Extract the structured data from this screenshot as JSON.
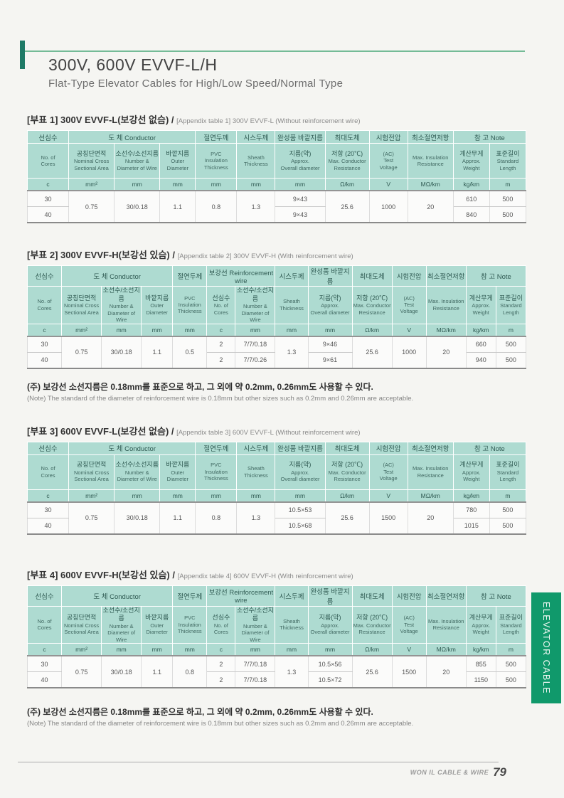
{
  "page": {
    "title": "300V, 600V EVVF-L/H",
    "subtitle": "Flat-Type Elevator Cables for High/Low Speed/Normal Type",
    "side_tab_label": "ELEVATOR CABLE",
    "footer_brand": "WON IL CABLE & WIRE",
    "page_number": "79"
  },
  "colors": {
    "table_header_bg": "#aedbd1",
    "tab_green": "#10996b",
    "accent_bar_green": "#1e7a66",
    "accent_line_green": "#74bb97"
  },
  "note": {
    "kr": "(주) 보강선 소선지름은 0.18mm를 표준으로 하고, 그 외에 약 0.2mm, 0.26mm도 사용할 수 있다.",
    "en": "(Note) The standard of the diameter of reinforcement wire is 0.18mm but other sizes such as 0.2mm and 0.26mm are acceptable."
  },
  "tables": [
    {
      "caption_kr": "[부표 1] 300V EVVF-L(보강선 없슴) / ",
      "caption_en": "[Appendix table 1] 300V EVVF-L (Without reinforcement wire)",
      "type": "L",
      "header_groups": [
        {
          "label": "선심수",
          "span": 1
        },
        {
          "label": "도 체  Conductor",
          "span": 3
        },
        {
          "label": "절연두께",
          "span": 1
        },
        {
          "label": "시스두께",
          "span": 1
        },
        {
          "label": "완성품 바깥지름",
          "span": 1
        },
        {
          "label": "최대도체",
          "span": 1
        },
        {
          "label": "시험전압",
          "span": 1
        },
        {
          "label": "최소절연저항",
          "span": 1
        },
        {
          "label": "참 고  Note",
          "span": 2
        }
      ],
      "header_cols": [
        {
          "en": "No. of\nCores"
        },
        {
          "kr": "공칭단면적",
          "en": "Nominal Cross\nSectional Area"
        },
        {
          "kr": "소선수/소선지름",
          "en": "Number &\nDiameter of Wire"
        },
        {
          "kr": "바깥지름",
          "en": "Outer\nDiameter"
        },
        {
          "en": "PVC\nInsulation\nThickness"
        },
        {
          "en": "Sheath\nThickness"
        },
        {
          "kr": "지름(약)",
          "en": "Approx.\nOverall diameter"
        },
        {
          "kr": "저항 (20℃)",
          "en": "Max. Conductor\nResistance"
        },
        {
          "en": "(AC)\nTest\nVoltage"
        },
        {
          "en": "Max. Insulation\nResistance"
        },
        {
          "kr": "계산무게",
          "en": "Approx.\nWeight"
        },
        {
          "kr": "표준길이",
          "en": "Standard\nLength"
        }
      ],
      "units": [
        "c",
        "mm²",
        "mm",
        "mm",
        "mm",
        "mm",
        "mm",
        "Ω/km",
        "V",
        "MΩ/km",
        "kg/km",
        "m"
      ],
      "rows": [
        [
          {
            "t": "30"
          },
          {
            "t": "0.75",
            "rs": 2
          },
          {
            "t": "30/0.18",
            "rs": 2
          },
          {
            "t": "1.1",
            "rs": 2
          },
          {
            "t": "0.8",
            "rs": 2
          },
          {
            "t": "1.3",
            "rs": 2
          },
          {
            "t": "9×43"
          },
          {
            "t": "25.6",
            "rs": 2
          },
          {
            "t": "1000",
            "rs": 2
          },
          {
            "t": "20",
            "rs": 2
          },
          {
            "t": "610"
          },
          {
            "t": "500"
          }
        ],
        [
          {
            "t": "40"
          },
          {
            "t": "9×43"
          },
          {
            "t": "840"
          },
          {
            "t": "500"
          }
        ]
      ]
    },
    {
      "caption_kr": "[부표 2] 300V EVVF-H(보강선 있슴) / ",
      "caption_en": "[Appendix table 2] 300V EVVF-H (With reinforcement wire)",
      "type": "H",
      "header_groups": [
        {
          "label": "선심수",
          "span": 1
        },
        {
          "label": "도 체  Conductor",
          "span": 3
        },
        {
          "label": "절연두께",
          "span": 1
        },
        {
          "label": "보강선 Reinforcement wire",
          "span": 2
        },
        {
          "label": "시스두께",
          "span": 1
        },
        {
          "label": "완성품 바깥지름",
          "span": 1
        },
        {
          "label": "최대도체",
          "span": 1
        },
        {
          "label": "시험전압",
          "span": 1
        },
        {
          "label": "최소절연저항",
          "span": 1
        },
        {
          "label": "참 고  Note",
          "span": 2
        }
      ],
      "header_cols": [
        {
          "en": "No. of\nCores"
        },
        {
          "kr": "공칭단면적",
          "en": "Nominal Cross\nSectional Area"
        },
        {
          "kr": "소선수/소선지름",
          "en": "Number &\nDiameter of Wire"
        },
        {
          "kr": "바깥지름",
          "en": "Outer\nDiameter"
        },
        {
          "en": "PVC\nInsulation\nThickness"
        },
        {
          "kr": "선심수",
          "en": "No. of\nCores"
        },
        {
          "kr": "소선수/소선지름",
          "en": "Number &\nDiameter of Wire"
        },
        {
          "en": "Sheath\nThickness"
        },
        {
          "kr": "지름(약)",
          "en": "Approx.\nOverall diameter"
        },
        {
          "kr": "저항 (20℃)",
          "en": "Max. Conductor\nResistance"
        },
        {
          "en": "(AC)\nTest\nVoltage"
        },
        {
          "en": "Max. Insulation\nResistance"
        },
        {
          "kr": "계산무게",
          "en": "Approx.\nWeight"
        },
        {
          "kr": "표준길이",
          "en": "Standard\nLength"
        }
      ],
      "units": [
        "c",
        "mm²",
        "mm",
        "mm",
        "mm",
        "c",
        "mm",
        "mm",
        "mm",
        "Ω/km",
        "V",
        "MΩ/km",
        "kg/km",
        "m"
      ],
      "rows": [
        [
          {
            "t": "30"
          },
          {
            "t": "0.75",
            "rs": 2
          },
          {
            "t": "30/0.18",
            "rs": 2
          },
          {
            "t": "1.1",
            "rs": 2
          },
          {
            "t": "0.5",
            "rs": 2
          },
          {
            "t": "2"
          },
          {
            "t": "7/7/0.18"
          },
          {
            "t": "1.3",
            "rs": 2
          },
          {
            "t": "9×46"
          },
          {
            "t": "25.6",
            "rs": 2
          },
          {
            "t": "1000",
            "rs": 2
          },
          {
            "t": "20",
            "rs": 2
          },
          {
            "t": "660"
          },
          {
            "t": "500"
          }
        ],
        [
          {
            "t": "40"
          },
          {
            "t": "2"
          },
          {
            "t": "7/7/0.26"
          },
          {
            "t": "9×61"
          },
          {
            "t": "940"
          },
          {
            "t": "500"
          }
        ]
      ]
    },
    {
      "caption_kr": "[부표 3] 600V EVVF-L(보강선 없슴) / ",
      "caption_en": "[Appendix table 3] 600V EVVF-L (Without reinforcement wire)",
      "type": "L",
      "header_groups": [
        {
          "label": "선심수",
          "span": 1
        },
        {
          "label": "도 체  Conductor",
          "span": 3
        },
        {
          "label": "절연두께",
          "span": 1
        },
        {
          "label": "시스두께",
          "span": 1
        },
        {
          "label": "완성품 바깥지름",
          "span": 1
        },
        {
          "label": "최대도체",
          "span": 1
        },
        {
          "label": "시험전압",
          "span": 1
        },
        {
          "label": "최소절연저항",
          "span": 1
        },
        {
          "label": "참 고  Note",
          "span": 2
        }
      ],
      "header_cols": [
        {
          "en": "No. of\nCores"
        },
        {
          "kr": "공칭단면적",
          "en": "Nominal Cross\nSectional Area"
        },
        {
          "kr": "소선수/소선지름",
          "en": "Number &\nDiameter of Wire"
        },
        {
          "kr": "바깥지름",
          "en": "Outer\nDiameter"
        },
        {
          "en": "PVC\nInsulation\nThickness"
        },
        {
          "en": "Sheath\nThickness"
        },
        {
          "kr": "지름(약)",
          "en": "Approx.\nOverall diameter"
        },
        {
          "kr": "저항 (20℃)",
          "en": "Max. Conductor\nResistance"
        },
        {
          "en": "(AC)\nTest\nVoltage"
        },
        {
          "en": "Max. Insulation\nResistance"
        },
        {
          "kr": "계산무게",
          "en": "Approx.\nWeight"
        },
        {
          "kr": "표준길이",
          "en": "Standard\nLength"
        }
      ],
      "units": [
        "c",
        "mm²",
        "mm",
        "mm",
        "mm",
        "mm",
        "mm",
        "Ω/km",
        "V",
        "MΩ/km",
        "kg/km",
        "m"
      ],
      "rows": [
        [
          {
            "t": "30"
          },
          {
            "t": "0.75",
            "rs": 2
          },
          {
            "t": "30/0.18",
            "rs": 2
          },
          {
            "t": "1.1",
            "rs": 2
          },
          {
            "t": "0.8",
            "rs": 2
          },
          {
            "t": "1.3",
            "rs": 2
          },
          {
            "t": "10.5×53"
          },
          {
            "t": "25.6",
            "rs": 2
          },
          {
            "t": "1500",
            "rs": 2
          },
          {
            "t": "20",
            "rs": 2
          },
          {
            "t": "780"
          },
          {
            "t": "500"
          }
        ],
        [
          {
            "t": "40"
          },
          {
            "t": "10.5×68"
          },
          {
            "t": "1015"
          },
          {
            "t": "500"
          }
        ]
      ]
    },
    {
      "caption_kr": "[부표 4] 600V EVVF-H(보강선 있슴) / ",
      "caption_en": "[Appendix table 4] 600V EVVF-H (With reinforcement wire)",
      "type": "H",
      "header_groups": [
        {
          "label": "선심수",
          "span": 1
        },
        {
          "label": "도 체  Conductor",
          "span": 3
        },
        {
          "label": "절연두께",
          "span": 1
        },
        {
          "label": "보강선 Reinforcement wire",
          "span": 2
        },
        {
          "label": "시스두께",
          "span": 1
        },
        {
          "label": "완성품 바깥지름",
          "span": 1
        },
        {
          "label": "최대도체",
          "span": 1
        },
        {
          "label": "시험전압",
          "span": 1
        },
        {
          "label": "최소절연저항",
          "span": 1
        },
        {
          "label": "참 고  Note",
          "span": 2
        }
      ],
      "header_cols": [
        {
          "en": "No. of\nCores"
        },
        {
          "kr": "공칭단면적",
          "en": "Nominal Cross\nSectional Area"
        },
        {
          "kr": "소선수/소선지름",
          "en": "Number &\nDiameter of Wire"
        },
        {
          "kr": "바깥지름",
          "en": "Outer\nDiameter"
        },
        {
          "en": "PVC\nInsulation\nThickness"
        },
        {
          "kr": "선심수",
          "en": "No. of\nCores"
        },
        {
          "kr": "소선수/소선지름",
          "en": "Number &\nDiameter of Wire"
        },
        {
          "en": "Sheath\nThickness"
        },
        {
          "kr": "지름(약)",
          "en": "Approx.\nOverall diameter"
        },
        {
          "kr": "저항 (20℃)",
          "en": "Max. Conductor\nResistance"
        },
        {
          "en": "(AC)\nTest\nVoltage"
        },
        {
          "en": "Max. Insulation\nResistance"
        },
        {
          "kr": "계산무게",
          "en": "Approx.\nWeight"
        },
        {
          "kr": "표준길이",
          "en": "Standard\nLength"
        }
      ],
      "units": [
        "c",
        "mm²",
        "mm",
        "mm",
        "mm",
        "c",
        "mm",
        "mm",
        "mm",
        "Ω/km",
        "V",
        "MΩ/km",
        "kg/km",
        "m"
      ],
      "rows": [
        [
          {
            "t": "30"
          },
          {
            "t": "0.75",
            "rs": 2
          },
          {
            "t": "30/0.18",
            "rs": 2
          },
          {
            "t": "1.1",
            "rs": 2
          },
          {
            "t": "0.8",
            "rs": 2
          },
          {
            "t": "2"
          },
          {
            "t": "7/7/0.18"
          },
          {
            "t": "1.3",
            "rs": 2
          },
          {
            "t": "10.5×56"
          },
          {
            "t": "25.6",
            "rs": 2
          },
          {
            "t": "1500",
            "rs": 2
          },
          {
            "t": "20",
            "rs": 2
          },
          {
            "t": "855"
          },
          {
            "t": "500"
          }
        ],
        [
          {
            "t": "40"
          },
          {
            "t": "2"
          },
          {
            "t": "7/7/0.18"
          },
          {
            "t": "10.5×72"
          },
          {
            "t": "1150"
          },
          {
            "t": "500"
          }
        ]
      ]
    }
  ]
}
